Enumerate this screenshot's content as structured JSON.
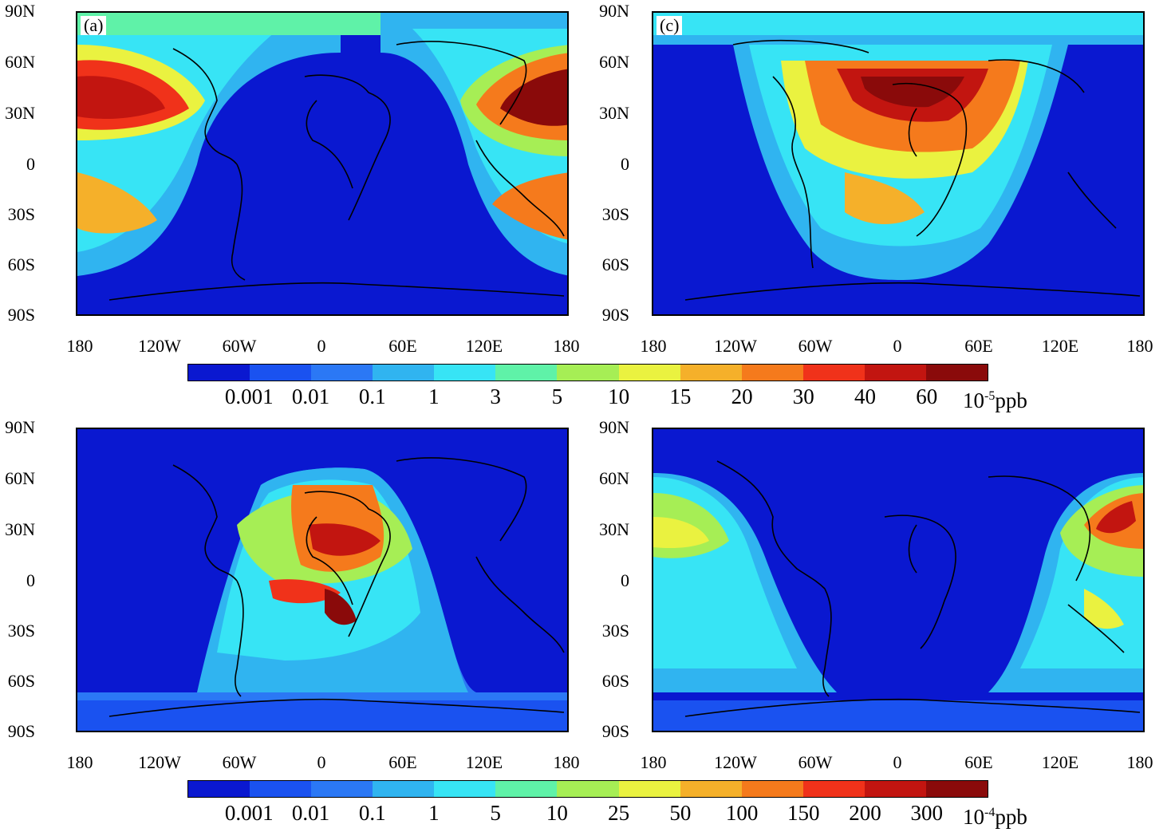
{
  "panels": [
    {
      "id": "a",
      "label": "(a)"
    },
    {
      "id": "c",
      "label": "(c)"
    },
    {
      "id": "b",
      "label": ""
    },
    {
      "id": "d",
      "label": ""
    }
  ],
  "lat_ticks": [
    "90N",
    "60N",
    "30N",
    "0",
    "30S",
    "60S",
    "90S"
  ],
  "lon_ticks": [
    "180",
    "120W",
    "60W",
    "0",
    "60E",
    "120E",
    "180"
  ],
  "colorbar_top": {
    "colors": [
      "#0a18d0",
      "#1a52f0",
      "#2b78f5",
      "#30b4f0",
      "#37e4f5",
      "#5ff2a8",
      "#a6ee55",
      "#eaf240",
      "#f5b02a",
      "#f57a1c",
      "#f0321a",
      "#c21510",
      "#8a0a0a"
    ],
    "labels": [
      "0.001",
      "0.01",
      "0.1",
      "1",
      "3",
      "5",
      "10",
      "15",
      "20",
      "30",
      "40",
      "60"
    ],
    "unit_base": "10",
    "unit_exp": "-5",
    "unit_tail": "ppb"
  },
  "colorbar_bottom": {
    "colors": [
      "#0a18d0",
      "#1a52f0",
      "#2b78f5",
      "#30b4f0",
      "#37e4f5",
      "#5ff2a8",
      "#a6ee55",
      "#eaf240",
      "#f5b02a",
      "#f57a1c",
      "#f0321a",
      "#c21510",
      "#8a0a0a"
    ],
    "labels": [
      "0.001",
      "0.01",
      "0.1",
      "1",
      "5",
      "10",
      "25",
      "50",
      "100",
      "150",
      "200",
      "300"
    ],
    "unit_base": "10",
    "unit_exp": "-4",
    "unit_tail": "ppb"
  }
}
